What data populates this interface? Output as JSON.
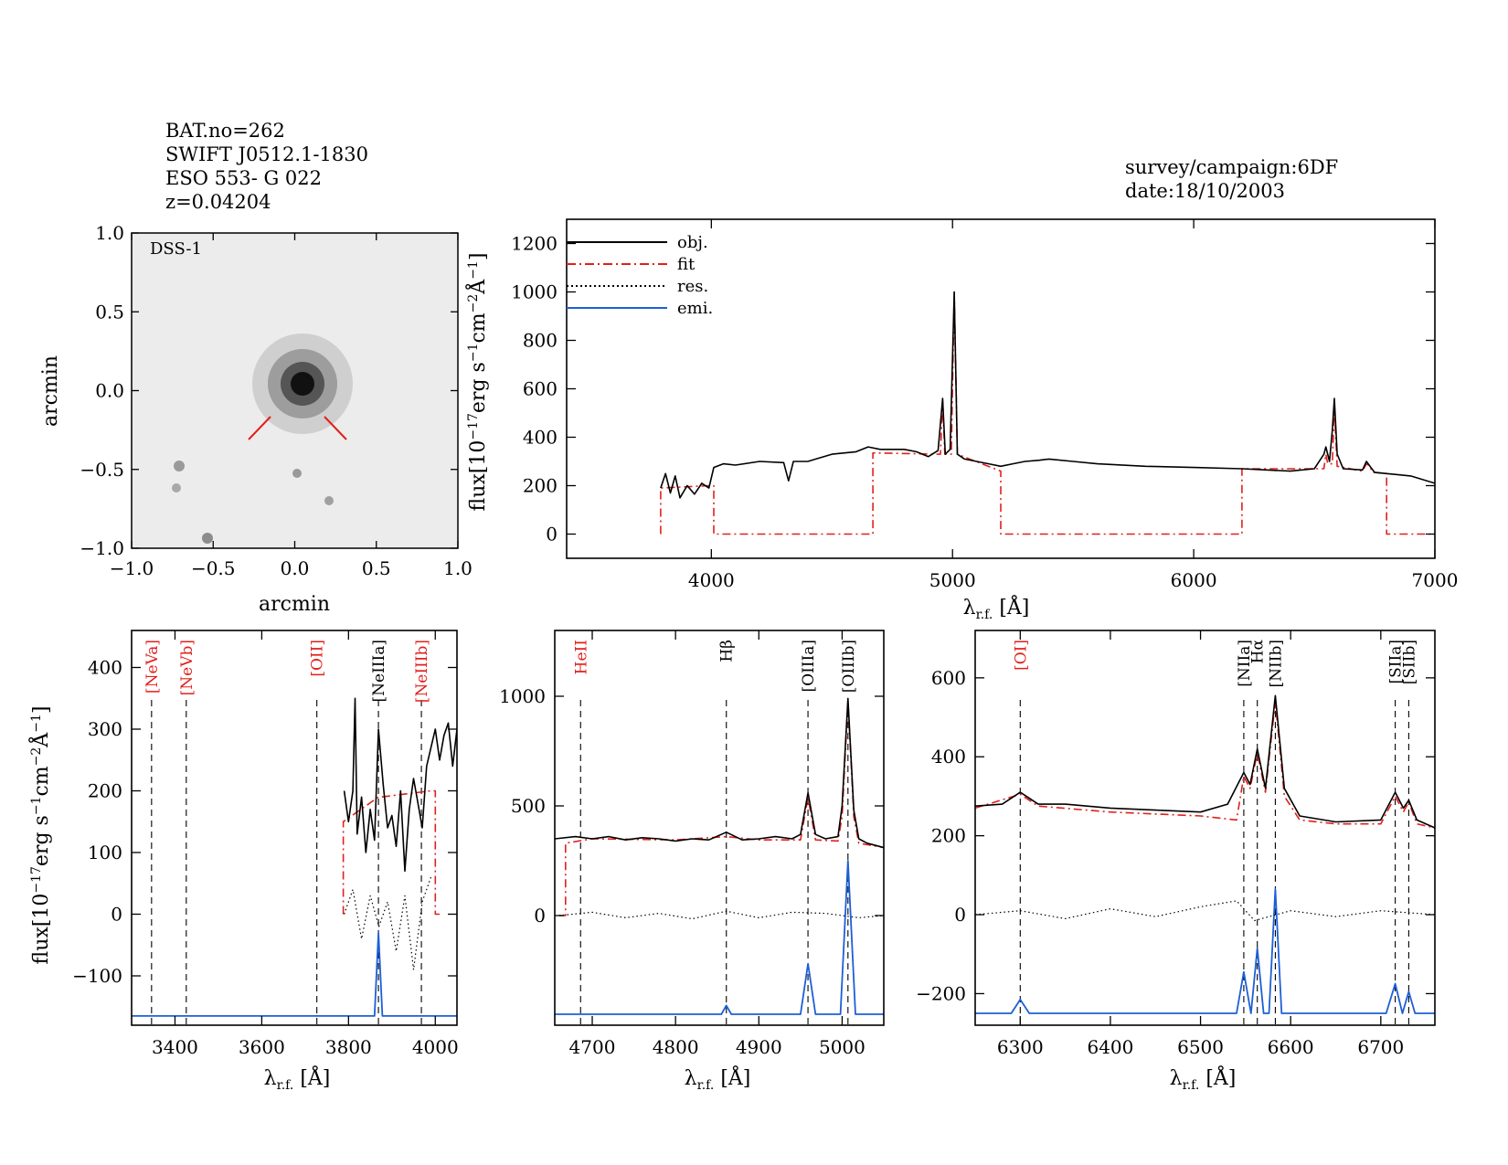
{
  "header": {
    "lines": [
      "BAT.no=262",
      "SWIFT J0512.1-1830",
      "ESO 553- G 022",
      "z=0.04204"
    ],
    "survey": "survey/campaign:6DF",
    "date": "date:18/10/2003"
  },
  "colors": {
    "obj": "#000000",
    "fit": "#e0201c",
    "res": "#000000",
    "emi": "#1e5fd6",
    "image_bg": "#ececec"
  },
  "image_panel": {
    "label": "DSS-1",
    "xlabel": "arcmin",
    "ylabel": "arcmin",
    "xlim": [
      -1.0,
      1.0
    ],
    "ylim": [
      -1.0,
      1.0
    ],
    "xticks": [
      "−1.0",
      "−0.5",
      "0.0",
      "0.5",
      "1.0"
    ],
    "yticks": [
      "−1.0",
      "−0.5",
      "0.0",
      "0.5",
      "1.0"
    ]
  },
  "legend": {
    "items": [
      {
        "label": "obj.",
        "style": "solid",
        "color": "#000000"
      },
      {
        "label": "fit",
        "style": "dashdot",
        "color": "#e0201c"
      },
      {
        "label": "res.",
        "style": "dotted",
        "color": "#000000"
      },
      {
        "label": "emi.",
        "style": "solid",
        "color": "#1e5fd6"
      }
    ]
  },
  "chart_data": [
    {
      "id": "main",
      "type": "line",
      "xlabel": "λ_r.f. [Å]",
      "ylabel": "flux[10^-17 erg s^-1 cm^-2 Å^-1]",
      "xlim": [
        3400,
        7000
      ],
      "ylim": [
        -100,
        1300
      ],
      "xticks": [
        4000,
        5000,
        6000,
        7000
      ],
      "yticks": [
        0,
        200,
        400,
        600,
        800,
        1000,
        1200
      ],
      "series": [
        {
          "name": "obj.",
          "x": [
            3790,
            3810,
            3830,
            3850,
            3870,
            3900,
            3930,
            3960,
            3990,
            4010,
            4050,
            4100,
            4200,
            4300,
            4320,
            4340,
            4400,
            4500,
            4600,
            4650,
            4700,
            4800,
            4850,
            4900,
            4940,
            4959,
            4970,
            4990,
            5007,
            5020,
            5050,
            5100,
            5150,
            5200,
            5250,
            5300,
            5360,
            5400,
            5500,
            5600,
            5800,
            6000,
            6200,
            6300,
            6400,
            6500,
            6540,
            6548,
            6563,
            6575,
            6583,
            6595,
            6620,
            6700,
            6716,
            6731,
            6750,
            6800,
            6900,
            7000
          ],
          "y": [
            190,
            250,
            170,
            240,
            150,
            200,
            165,
            210,
            190,
            275,
            290,
            285,
            300,
            295,
            220,
            300,
            300,
            330,
            340,
            360,
            350,
            350,
            340,
            320,
            345,
            560,
            330,
            350,
            1000,
            330,
            310,
            300,
            290,
            280,
            290,
            300,
            305,
            310,
            300,
            290,
            280,
            275,
            270,
            265,
            260,
            270,
            330,
            360,
            300,
            430,
            560,
            330,
            270,
            265,
            300,
            280,
            255,
            250,
            240,
            210
          ]
        },
        {
          "name": "fit",
          "x": [
            3790,
            3790,
            3990,
            4010,
            4010,
            4670,
            4670,
            4950,
            4959,
            4968,
            4995,
            5007,
            5020,
            5200,
            5200,
            6200,
            6200,
            6540,
            6548,
            6556,
            6575,
            6583,
            6595,
            6700,
            6716,
            6731,
            6740,
            6800,
            6800,
            7000
          ],
          "y": [
            0,
            190,
            200,
            200,
            0,
            0,
            335,
            330,
            550,
            330,
            330,
            1000,
            330,
            260,
            0,
            0,
            270,
            270,
            330,
            290,
            290,
            520,
            280,
            260,
            290,
            280,
            255,
            250,
            0,
            0
          ]
        },
        {
          "name": "emi.",
          "x": [],
          "y": []
        }
      ]
    },
    {
      "id": "panel-neon",
      "type": "line",
      "xlabel": "λ_r.f. [Å]",
      "ylabel": "flux[10^-17 erg s^-1 cm^-2 Å^-1]",
      "xlim": [
        3300,
        4050
      ],
      "ylim": [
        -180,
        460
      ],
      "xticks": [
        3400,
        3600,
        3800,
        4000
      ],
      "yticks": [
        -100,
        0,
        100,
        200,
        300,
        400
      ],
      "lines": [
        {
          "label": "[NeVa]",
          "x": 3346,
          "color": "#e0201c"
        },
        {
          "label": "[NeVb]",
          "x": 3426,
          "color": "#e0201c"
        },
        {
          "label": "[OII]",
          "x": 3727,
          "color": "#e0201c"
        },
        {
          "label": "[NeIIIa]",
          "x": 3869,
          "color": "#000000"
        },
        {
          "label": "[NeIIIb]",
          "x": 3968,
          "color": "#e0201c"
        }
      ],
      "series": [
        {
          "name": "obj.",
          "x": [
            3790,
            3800,
            3810,
            3815,
            3820,
            3830,
            3840,
            3850,
            3860,
            3869,
            3880,
            3890,
            3900,
            3910,
            3920,
            3930,
            3940,
            3950,
            3960,
            3970,
            3980,
            3990,
            4000,
            4010,
            4020,
            4030,
            4040,
            4050
          ],
          "y": [
            200,
            150,
            200,
            350,
            130,
            190,
            100,
            170,
            120,
            300,
            210,
            140,
            160,
            110,
            200,
            70,
            170,
            220,
            180,
            140,
            240,
            270,
            300,
            250,
            290,
            310,
            240,
            300
          ]
        },
        {
          "name": "fit",
          "x": [
            3788,
            3788,
            3869,
            3875,
            3990,
            4000,
            4000,
            4010
          ],
          "y": [
            0,
            150,
            190,
            190,
            200,
            200,
            0,
            0
          ]
        },
        {
          "name": "res.",
          "x": [
            3790,
            3810,
            3830,
            3850,
            3870,
            3890,
            3910,
            3930,
            3950,
            3970,
            3990
          ],
          "y": [
            0,
            40,
            -40,
            30,
            -20,
            20,
            -60,
            30,
            -90,
            20,
            60
          ]
        },
        {
          "name": "emi.",
          "x": [
            3300,
            3860,
            3869,
            3878,
            4050
          ],
          "y": [
            -165,
            -165,
            -30,
            -165,
            -165
          ]
        }
      ]
    },
    {
      "id": "panel-hbeta-oiii",
      "type": "line",
      "xlabel": "λ_r.f. [Å]",
      "ylabel": "",
      "xlim": [
        4655,
        5050
      ],
      "ylim": [
        -500,
        1300
      ],
      "xticks": [
        4700,
        4800,
        4900,
        5000
      ],
      "yticks": [
        0,
        500,
        1000
      ],
      "lines": [
        {
          "label": "HeII",
          "x": 4686,
          "color": "#e0201c"
        },
        {
          "label": "Hβ_nr",
          "x": 4861,
          "color": "#000000"
        },
        {
          "label": "[OIIIa]",
          "x": 4959,
          "color": "#000000"
        },
        {
          "label": "[OIIIb]",
          "x": 5007,
          "color": "#000000"
        }
      ],
      "series": [
        {
          "name": "obj.",
          "x": [
            4655,
            4680,
            4700,
            4720,
            4740,
            4760,
            4780,
            4800,
            4820,
            4840,
            4861,
            4880,
            4900,
            4920,
            4940,
            4950,
            4959,
            4968,
            4980,
            4995,
            5000,
            5007,
            5014,
            5020,
            5030,
            5040,
            5050
          ],
          "y": [
            350,
            360,
            350,
            360,
            345,
            355,
            350,
            340,
            350,
            345,
            380,
            345,
            350,
            360,
            350,
            370,
            560,
            370,
            350,
            360,
            500,
            990,
            480,
            350,
            330,
            320,
            310
          ]
        },
        {
          "name": "fit",
          "x": [
            4660,
            4668,
            4668,
            4700,
            4800,
            4861,
            4900,
            4950,
            4959,
            4968,
            4995,
            5000,
            5007,
            5014,
            5020,
            5050
          ],
          "y": [
            0,
            0,
            330,
            350,
            345,
            360,
            345,
            345,
            540,
            345,
            340,
            450,
            980,
            450,
            330,
            310
          ]
        },
        {
          "name": "res.",
          "x": [
            4660,
            4700,
            4740,
            4780,
            4820,
            4861,
            4900,
            4940,
            4980,
            5020,
            5050
          ],
          "y": [
            0,
            15,
            -10,
            10,
            -15,
            20,
            -10,
            15,
            10,
            -10,
            0
          ]
        },
        {
          "name": "emi.",
          "x": [
            4655,
            4855,
            4861,
            4867,
            4950,
            4959,
            4968,
            4998,
            5007,
            5016,
            5050
          ],
          "y": [
            -450,
            -450,
            -410,
            -450,
            -450,
            -220,
            -450,
            -450,
            250,
            -450,
            -450
          ]
        }
      ]
    },
    {
      "id": "panel-halpha",
      "type": "line",
      "xlabel": "λ_r.f. [Å]",
      "ylabel": "",
      "xlim": [
        6250,
        6760
      ],
      "ylim": [
        -280,
        720
      ],
      "xticks": [
        6300,
        6400,
        6500,
        6600,
        6700
      ],
      "yticks": [
        -200,
        0,
        200,
        400,
        600
      ],
      "lines": [
        {
          "label": "[OI]",
          "x": 6300,
          "color": "#e0201c"
        },
        {
          "label": "[NIIa]",
          "x": 6548,
          "color": "#000000"
        },
        {
          "label": "Hα",
          "x": 6563,
          "color": "#000000"
        },
        {
          "label": "[NIIb]",
          "x": 6583,
          "color": "#000000"
        },
        {
          "label": "[SIIa]",
          "x": 6716,
          "color": "#000000"
        },
        {
          "label": "[SIIb]",
          "x": 6731,
          "color": "#000000"
        }
      ],
      "series": [
        {
          "name": "obj.",
          "x": [
            6250,
            6280,
            6300,
            6320,
            6350,
            6400,
            6450,
            6500,
            6530,
            6548,
            6555,
            6563,
            6572,
            6583,
            6593,
            6610,
            6650,
            6700,
            6716,
            6725,
            6731,
            6740,
            6760
          ],
          "y": [
            275,
            280,
            310,
            280,
            280,
            270,
            265,
            260,
            280,
            360,
            330,
            420,
            320,
            555,
            320,
            250,
            235,
            240,
            310,
            270,
            290,
            240,
            220
          ]
        },
        {
          "name": "fit",
          "x": [
            6250,
            6300,
            6320,
            6400,
            6500,
            6540,
            6548,
            6555,
            6563,
            6572,
            6583,
            6593,
            6610,
            6650,
            6700,
            6716,
            6725,
            6731,
            6740,
            6760
          ],
          "y": [
            270,
            305,
            275,
            260,
            250,
            240,
            350,
            320,
            410,
            310,
            540,
            300,
            240,
            230,
            230,
            300,
            260,
            285,
            230,
            220
          ]
        },
        {
          "name": "res.",
          "x": [
            6250,
            6300,
            6350,
            6400,
            6450,
            6500,
            6540,
            6560,
            6600,
            6650,
            6700,
            6760
          ],
          "y": [
            0,
            10,
            -10,
            15,
            -5,
            20,
            35,
            -15,
            10,
            -5,
            10,
            0
          ]
        },
        {
          "name": "emi.",
          "x": [
            6250,
            6290,
            6300,
            6310,
            6540,
            6548,
            6556,
            6563,
            6570,
            6576,
            6583,
            6590,
            6706,
            6716,
            6724,
            6731,
            6738,
            6760
          ],
          "y": [
            -250,
            -250,
            -215,
            -250,
            -250,
            -145,
            -250,
            -85,
            -250,
            -250,
            65,
            -250,
            -250,
            -175,
            -250,
            -195,
            -250,
            -250
          ]
        }
      ]
    }
  ]
}
